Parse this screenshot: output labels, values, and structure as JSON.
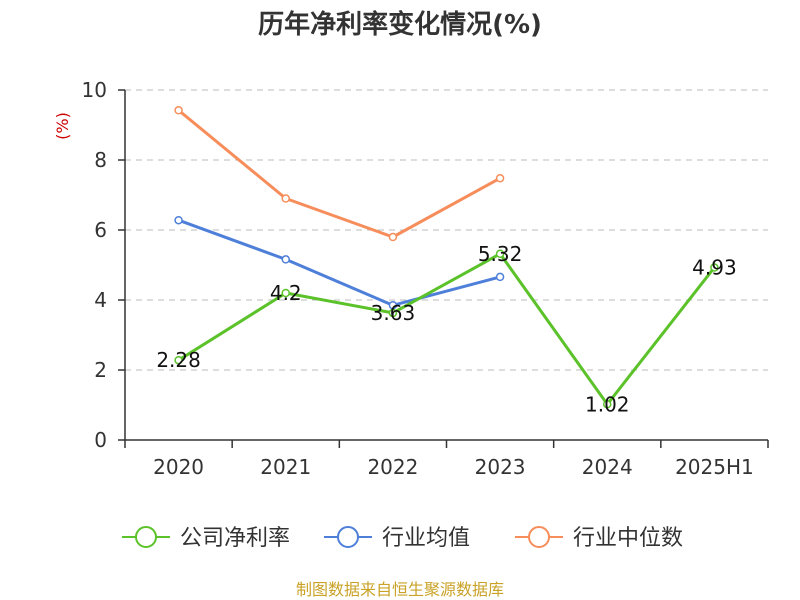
{
  "chart_data": {
    "type": "line",
    "title": "历年净利率变化情况(%)",
    "y_unit": "(%)",
    "categories": [
      "2020",
      "2021",
      "2022",
      "2023",
      "2024",
      "2025H1"
    ],
    "ylim": [
      0,
      10
    ],
    "y_ticks": [
      0,
      2,
      4,
      6,
      8,
      10
    ],
    "grid": true,
    "legend_position": "bottom",
    "series": [
      {
        "name": "公司净利率",
        "color": "#5bc22a",
        "values": [
          2.28,
          4.2,
          3.63,
          5.32,
          1.02,
          4.93
        ],
        "labels": [
          "2.28",
          "4.2",
          "3.63",
          "5.32",
          "1.02",
          "4.93"
        ]
      },
      {
        "name": "行业均值",
        "color": "#4e7fd9",
        "values": [
          6.28,
          5.16,
          3.85,
          4.66,
          null,
          null
        ]
      },
      {
        "name": "行业中位数",
        "color": "#f68d5a",
        "values": [
          9.42,
          6.9,
          5.8,
          7.48,
          null,
          null
        ]
      }
    ]
  },
  "colors": {
    "unit": "#cc0000",
    "source": "#c9a227",
    "axis": "#333333",
    "grid": "#bbbbbb"
  },
  "footer": {
    "source": "制图数据来自恒生聚源数据库"
  }
}
